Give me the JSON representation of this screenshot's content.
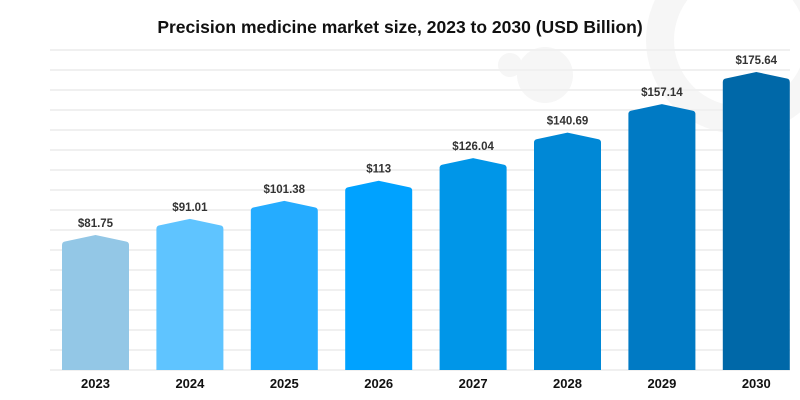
{
  "chart_data": {
    "type": "bar",
    "title": "Precision medicine market size, 2023 to 2030 (USD Billion)",
    "xlabel": "",
    "ylabel": "",
    "categories": [
      "2023",
      "2024",
      "2025",
      "2026",
      "2027",
      "2028",
      "2029",
      "2030"
    ],
    "values": [
      81.75,
      91.01,
      101.38,
      113,
      126.04,
      140.69,
      157.14,
      175.64
    ],
    "data_labels": [
      "$81.75",
      "$91.01",
      "$101.38",
      "$113",
      "$126.04",
      "$140.69",
      "$157.14",
      "$175.64"
    ],
    "colors": [
      "#93c7e6",
      "#5fc4ff",
      "#25acff",
      "#00a2ff",
      "#0096e8",
      "#0088d6",
      "#007ac4",
      "#0068a8"
    ],
    "grid": true,
    "legend": "none"
  }
}
